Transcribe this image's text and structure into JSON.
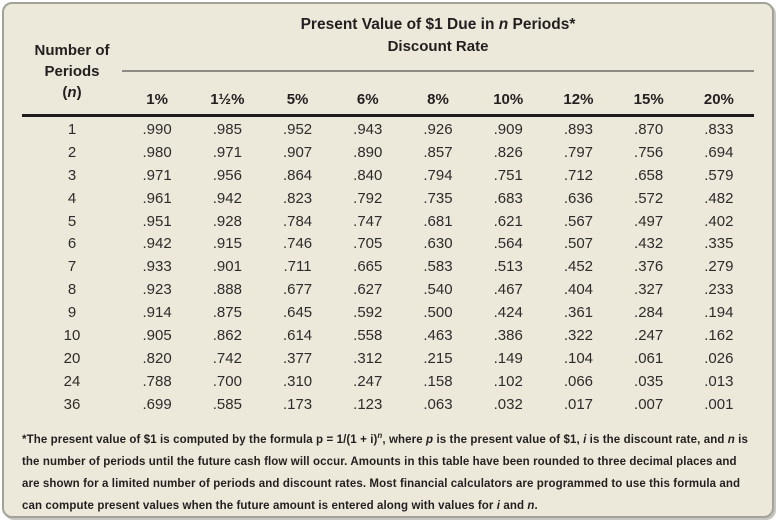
{
  "table": {
    "title": {
      "prefix": "Present Value of $1 Due in ",
      "italic_n": "n",
      "suffix": " Periods*"
    },
    "subtitle": "Discount Rate",
    "corner": {
      "line1": "Number of",
      "line2": "Periods",
      "paren_open": "(",
      "italic_n": "n",
      "paren_close": ")"
    },
    "rate_headers": [
      "1%",
      "1½%",
      "5%",
      "6%",
      "8%",
      "10%",
      "12%",
      "15%",
      "20%"
    ],
    "rows": [
      {
        "n": "1",
        "values": [
          ".990",
          ".985",
          ".952",
          ".943",
          ".926",
          ".909",
          ".893",
          ".870",
          ".833"
        ]
      },
      {
        "n": "2",
        "values": [
          ".980",
          ".971",
          ".907",
          ".890",
          ".857",
          ".826",
          ".797",
          ".756",
          ".694"
        ]
      },
      {
        "n": "3",
        "values": [
          ".971",
          ".956",
          ".864",
          ".840",
          ".794",
          ".751",
          ".712",
          ".658",
          ".579"
        ]
      },
      {
        "n": "4",
        "values": [
          ".961",
          ".942",
          ".823",
          ".792",
          ".735",
          ".683",
          ".636",
          ".572",
          ".482"
        ]
      },
      {
        "n": "5",
        "values": [
          ".951",
          ".928",
          ".784",
          ".747",
          ".681",
          ".621",
          ".567",
          ".497",
          ".402"
        ]
      },
      {
        "n": "6",
        "values": [
          ".942",
          ".915",
          ".746",
          ".705",
          ".630",
          ".564",
          ".507",
          ".432",
          ".335"
        ]
      },
      {
        "n": "7",
        "values": [
          ".933",
          ".901",
          ".711",
          ".665",
          ".583",
          ".513",
          ".452",
          ".376",
          ".279"
        ]
      },
      {
        "n": "8",
        "values": [
          ".923",
          ".888",
          ".677",
          ".627",
          ".540",
          ".467",
          ".404",
          ".327",
          ".233"
        ]
      },
      {
        "n": "9",
        "values": [
          ".914",
          ".875",
          ".645",
          ".592",
          ".500",
          ".424",
          ".361",
          ".284",
          ".194"
        ]
      },
      {
        "n": "10",
        "values": [
          ".905",
          ".862",
          ".614",
          ".558",
          ".463",
          ".386",
          ".322",
          ".247",
          ".162"
        ]
      },
      {
        "n": "20",
        "values": [
          ".820",
          ".742",
          ".377",
          ".312",
          ".215",
          ".149",
          ".104",
          ".061",
          ".026"
        ]
      },
      {
        "n": "24",
        "values": [
          ".788",
          ".700",
          ".310",
          ".247",
          ".158",
          ".102",
          ".066",
          ".035",
          ".013"
        ]
      },
      {
        "n": "36",
        "values": [
          ".699",
          ".585",
          ".173",
          ".123",
          ".063",
          ".032",
          ".017",
          ".007",
          ".001"
        ]
      }
    ]
  },
  "footnote": {
    "seg1": "*The present value of $1 is computed by the formula p = 1/(1 + i)",
    "sup_n": "n",
    "seg2": ", where ",
    "var_p": "p",
    "seg3": " is the present value of $1, ",
    "var_i1": "i",
    "seg4": " is the discount rate, and ",
    "var_n1": "n",
    "seg5": " is the number of periods until the future cash flow will occur. Amounts in this table have been rounded to three decimal places and are shown for a limited number of periods and discount rates. Most financial calculators are programmed to use this formula and can compute present values when the future amount is entered along with values for ",
    "var_i2": "i",
    "seg6": " and ",
    "var_n2": "n",
    "seg7": "."
  },
  "colors": {
    "background": "#ece9da",
    "border": "#a3a299",
    "text": "#231f20",
    "gray_rule": "#8d8c84",
    "dark_rule": "#1d1b1c"
  }
}
